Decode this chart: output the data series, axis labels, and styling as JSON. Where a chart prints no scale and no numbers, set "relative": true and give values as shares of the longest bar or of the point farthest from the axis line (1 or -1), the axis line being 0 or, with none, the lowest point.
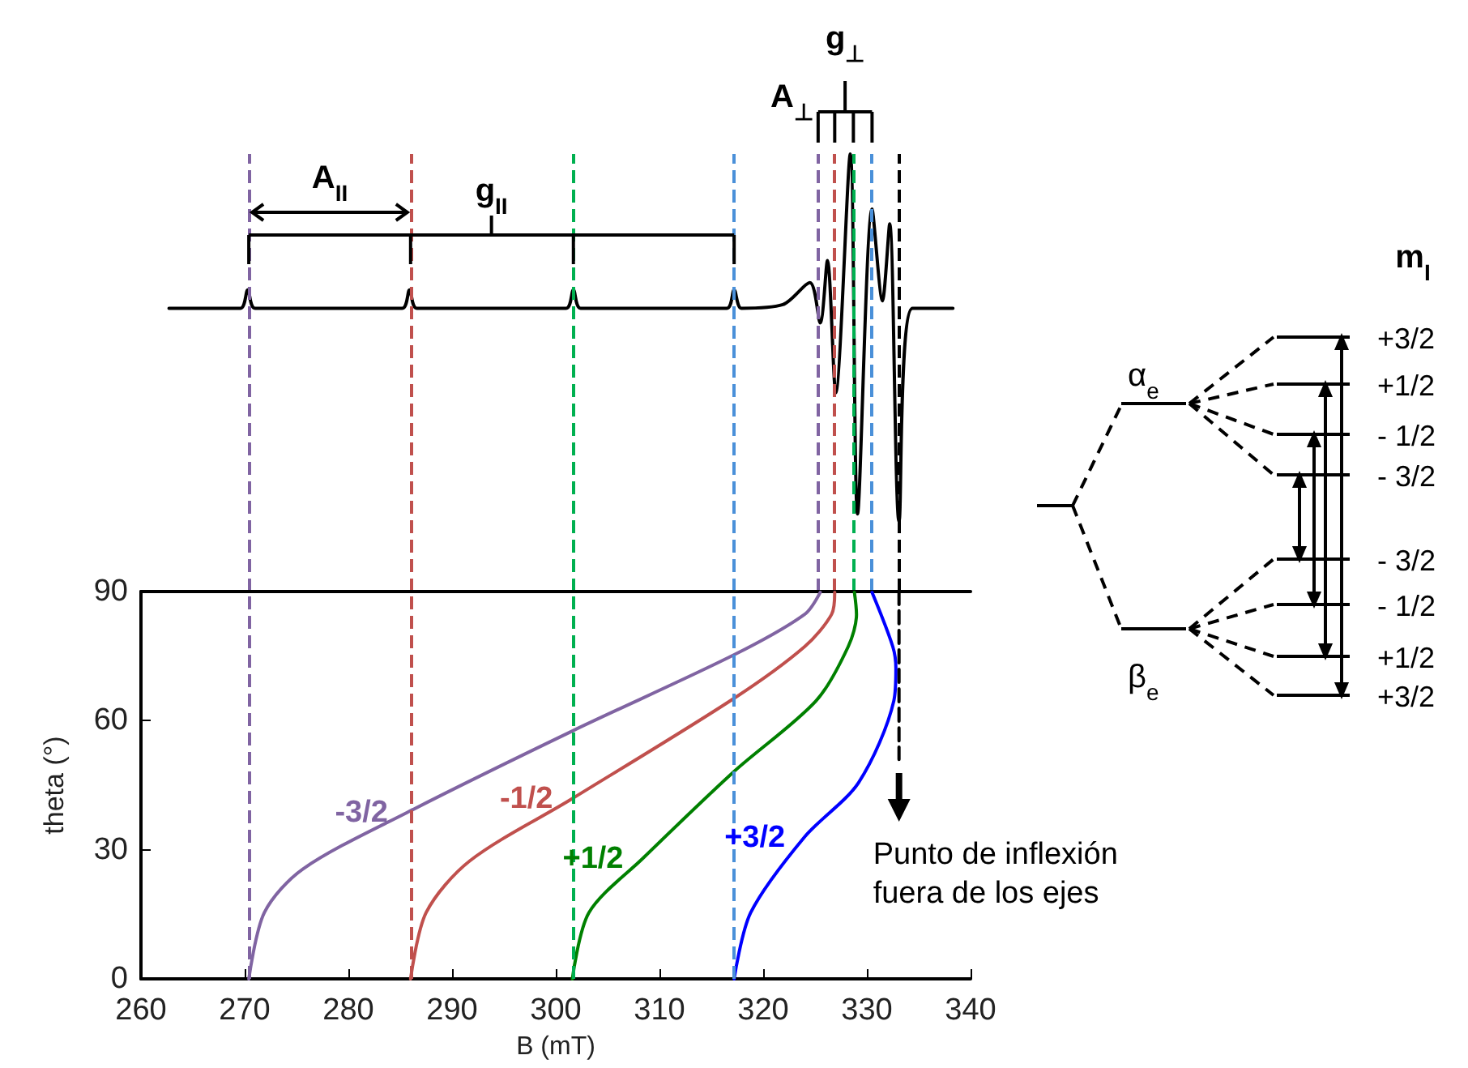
{
  "chart_data": [
    {
      "type": "line",
      "relative": true,
      "xlim": [
        260,
        340
      ],
      "tick_labels": false,
      "marker": "none",
      "grid": false,
      "series": [
        {
          "color": "#000000",
          "x": [
            262.7,
            269.6,
            270.3,
            271.0,
            285.2,
            285.9,
            286.6,
            301.0,
            301.7,
            302.4,
            316.5,
            317.2,
            317.9,
            321.9,
            324.5,
            325.5,
            326.2,
            327.0,
            328.4,
            329.1,
            330.5,
            331.5,
            332.2,
            333.1,
            334.4,
            338.3
          ],
          "values": [
            0.58,
            0.58,
            0.63,
            0.58,
            0.58,
            0.63,
            0.58,
            0.58,
            0.63,
            0.58,
            0.58,
            0.63,
            0.58,
            0.59,
            0.65,
            0.54,
            0.71,
            0.35,
            1,
            0.02,
            0.85,
            0.6,
            0.81,
            0,
            0.58,
            0.58
          ]
        }
      ],
      "ref_lines": [
        {
          "axis": "x",
          "value": 270.4,
          "color": "#8064a2",
          "line_style": "dashed"
        },
        {
          "axis": "x",
          "value": 286.0,
          "color": "#c0504d",
          "line_style": "dashed"
        },
        {
          "axis": "x",
          "value": 301.7,
          "color": "#00b050",
          "line_style": "dashed"
        },
        {
          "axis": "x",
          "value": 317.2,
          "color": "#4a90d9",
          "line_style": "dashed"
        },
        {
          "axis": "x",
          "value": 325.3,
          "color": "#8064a2",
          "line_style": "dashed"
        },
        {
          "axis": "x",
          "value": 326.9,
          "color": "#c0504d",
          "line_style": "dashed"
        },
        {
          "axis": "x",
          "value": 328.7,
          "color": "#00b050",
          "line_style": "dashed"
        },
        {
          "axis": "x",
          "value": 330.5,
          "color": "#4a90d9",
          "line_style": "dashed"
        },
        {
          "axis": "x",
          "value": 333.1,
          "color": "#000000",
          "line_style": "dashed"
        }
      ],
      "annotations": [
        "A$_{II}$",
        "g$_{II}$",
        "A$_{⊥}$",
        "g$_{⊥}$"
      ]
    },
    {
      "type": "line",
      "xlabel": "B (mT)",
      "ylabel": "theta (°)",
      "xlim": [
        260,
        340
      ],
      "xticks": [
        260,
        270,
        280,
        290,
        300,
        310,
        320,
        330,
        340
      ],
      "ylim": [
        0,
        90
      ],
      "yticks": [
        0,
        30,
        60,
        90
      ],
      "marker": "none",
      "grid": false,
      "line_style": "solid",
      "series": [
        {
          "name": "-3/2",
          "color": "#8064a2",
          "x": [
            270.4,
            271.9,
            275.6,
            285.7,
            301.6,
            317.2,
            324.0,
            325.5
          ],
          "values": [
            0,
            15.4,
            25.5,
            38.7,
            57.6,
            75.3,
            84.7,
            89.8
          ]
        },
        {
          "name": "-1/2",
          "color": "#c0504d",
          "x": [
            286.0,
            287.5,
            291.7,
            301.6,
            317.2,
            324.0,
            326.6,
            326.9
          ],
          "values": [
            0,
            15.4,
            27.4,
            41.9,
            65.2,
            77.2,
            84.7,
            89.8
          ]
        },
        {
          "name": "+1/2",
          "color": "#008000",
          "x": [
            301.6,
            303.2,
            308.4,
            317.2,
            325.1,
            328.2,
            329.0,
            328.8
          ],
          "values": [
            0,
            15.4,
            28.0,
            48.2,
            64.6,
            77.2,
            84.7,
            89.8
          ]
        },
        {
          "name": "+3/2",
          "color": "#0000ff",
          "x": [
            317.2,
            318.8,
            324.0,
            329.2,
            332.6,
            332.8,
            332.5,
            330.5
          ],
          "values": [
            0,
            15.4,
            33.0,
            45.6,
            64.6,
            72.1,
            77.2,
            89.8
          ]
        },
        {
          "color": "#000000",
          "line_style": "dashed",
          "x": [
            333.1,
            333.1
          ],
          "values": [
            90,
            51
          ]
        }
      ],
      "ref_lines": [
        {
          "axis": "x",
          "value": 270.4,
          "color": "#8064a2",
          "line_style": "dashed"
        },
        {
          "axis": "x",
          "value": 286.0,
          "color": "#c0504d",
          "line_style": "dashed"
        },
        {
          "axis": "x",
          "value": 301.7,
          "color": "#00b050",
          "line_style": "dashed"
        },
        {
          "axis": "x",
          "value": 317.2,
          "color": "#4a90d9",
          "line_style": "dashed"
        }
      ],
      "annotations": [
        "Punto de inflexión\nfuera de los ejes"
      ]
    },
    {
      "type": "other",
      "annotations": [
        "m$_{I}$",
        "α$_{e}$",
        "β$_{e}$",
        "+3/2",
        "+1/2",
        "- 1/2",
        "- 3/2",
        "- 3/2",
        "- 1/2",
        "+1/2",
        "+3/2"
      ]
    }
  ]
}
